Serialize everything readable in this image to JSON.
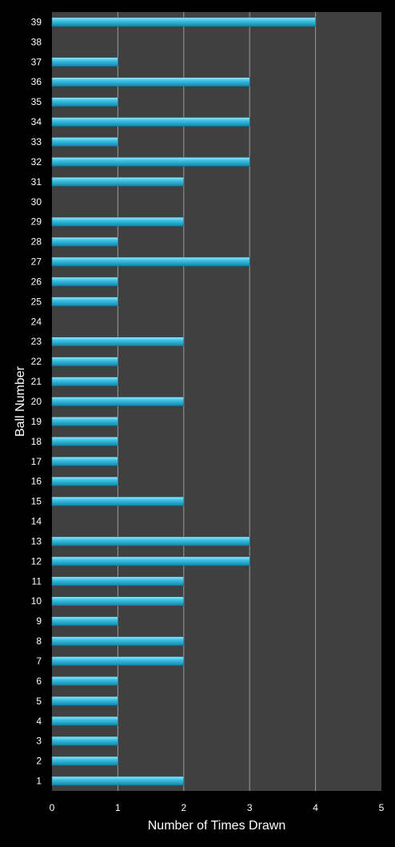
{
  "chart_data": {
    "type": "bar",
    "orientation": "horizontal",
    "title": "",
    "xlabel": "Number of Times Drawn",
    "ylabel": "Ball Number",
    "xlim": [
      0,
      5
    ],
    "xticks": [
      "0",
      "1",
      "2",
      "3",
      "4",
      "5"
    ],
    "grid": "vertical",
    "legend": "none",
    "categories": [
      "1",
      "2",
      "3",
      "4",
      "5",
      "6",
      "7",
      "8",
      "9",
      "10",
      "11",
      "12",
      "13",
      "14",
      "15",
      "16",
      "17",
      "18",
      "19",
      "20",
      "21",
      "22",
      "23",
      "24",
      "25",
      "26",
      "27",
      "28",
      "29",
      "30",
      "31",
      "32",
      "33",
      "34",
      "35",
      "36",
      "37",
      "38",
      "39"
    ],
    "values": [
      2,
      1,
      1,
      1,
      1,
      1,
      2,
      2,
      1,
      2,
      2,
      3,
      3,
      0,
      2,
      1,
      1,
      1,
      1,
      2,
      1,
      1,
      2,
      0,
      1,
      1,
      3,
      1,
      2,
      0,
      2,
      3,
      1,
      3,
      1,
      3,
      1,
      0,
      4
    ],
    "colors": {
      "background": "#000000",
      "plot_area": "#404040",
      "gridline": "#9a9a9a",
      "bar_light": "#9fe6f6",
      "bar_mid": "#3ec3e6",
      "bar_dark": "#1186a8",
      "text": "#ffffff"
    }
  }
}
